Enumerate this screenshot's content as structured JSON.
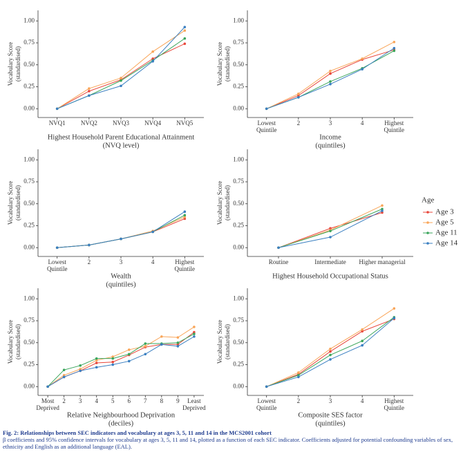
{
  "chart_data": [
    {
      "type": "line",
      "x_label": [
        "Highest Household Parent Educational Attainment",
        "(NVQ level)"
      ],
      "y_label": [
        "Vocabulary Score",
        "(standardised)"
      ],
      "categories": [
        [
          "NVQ1"
        ],
        [
          "NVQ2"
        ],
        [
          "NVQ3"
        ],
        [
          "NVQ4"
        ],
        [
          "NVQ5"
        ]
      ],
      "series": [
        {
          "name": "Age 3",
          "color": "#e8463a",
          "values": [
            0,
            0.2,
            0.33,
            0.57,
            0.74
          ]
        },
        {
          "name": "Age 5",
          "color": "#f9a65a",
          "values": [
            0,
            0.23,
            0.35,
            0.65,
            0.89
          ]
        },
        {
          "name": "Age 11",
          "color": "#3aa55b",
          "values": [
            0,
            0.15,
            0.32,
            0.55,
            0.8
          ]
        },
        {
          "name": "Age 14",
          "color": "#3a7fc1",
          "values": [
            0,
            0.15,
            0.26,
            0.54,
            0.93
          ]
        }
      ],
      "ylim": [
        -0.1,
        1.12
      ],
      "yticks": [
        {
          "value": 0,
          "label": "0.00"
        },
        {
          "value": 0.25,
          "label": "0.25"
        },
        {
          "value": 0.5,
          "label": "0.50"
        },
        {
          "value": 0.75,
          "label": "0.75"
        },
        {
          "value": 1,
          "label": "1.00"
        }
      ]
    },
    {
      "type": "line",
      "x_label": [
        "Income",
        "(quintiles)"
      ],
      "y_label": [
        "Vocabulary Score",
        "(standardised)"
      ],
      "categories": [
        [
          "Lowest",
          "Quintile"
        ],
        [
          "2"
        ],
        [
          "3"
        ],
        [
          "4"
        ],
        [
          "Highest",
          "Quintile"
        ]
      ],
      "series": [
        {
          "name": "Age 3",
          "color": "#e8463a",
          "values": [
            0,
            0.15,
            0.4,
            0.56,
            0.67
          ]
        },
        {
          "name": "Age 5",
          "color": "#f9a65a",
          "values": [
            0,
            0.17,
            0.43,
            0.57,
            0.76
          ]
        },
        {
          "name": "Age 11",
          "color": "#3aa55b",
          "values": [
            0,
            0.13,
            0.31,
            0.46,
            0.66
          ]
        },
        {
          "name": "Age 14",
          "color": "#3a7fc1",
          "values": [
            0,
            0.13,
            0.28,
            0.45,
            0.69
          ]
        }
      ],
      "ylim": [
        -0.1,
        1.12
      ],
      "yticks": [
        {
          "value": 0,
          "label": "0.00"
        },
        {
          "value": 0.25,
          "label": "0.25"
        },
        {
          "value": 0.5,
          "label": "0.50"
        },
        {
          "value": 0.75,
          "label": "0.75"
        },
        {
          "value": 1,
          "label": "1.00"
        }
      ]
    },
    {
      "type": "line",
      "x_label": [
        "Wealth",
        "(quintiles)"
      ],
      "y_label": [
        "Vocabulary Score",
        "(standardised)"
      ],
      "categories": [
        [
          "Lowest",
          "Quintile"
        ],
        [
          "2"
        ],
        [
          "3"
        ],
        [
          "4"
        ],
        [
          "Highest",
          "Quintile"
        ]
      ],
      "series": [
        {
          "name": "Age 3",
          "color": "#e8463a",
          "values": [
            0,
            0.03,
            0.1,
            0.18,
            0.33
          ]
        },
        {
          "name": "Age 5",
          "color": "#f9a65a",
          "values": [
            0,
            0.03,
            0.1,
            0.19,
            0.35
          ]
        },
        {
          "name": "Age 11",
          "color": "#3aa55b",
          "values": [
            0,
            0.03,
            0.1,
            0.18,
            0.37
          ]
        },
        {
          "name": "Age 14",
          "color": "#3a7fc1",
          "values": [
            0,
            0.03,
            0.1,
            0.18,
            0.41
          ]
        }
      ],
      "ylim": [
        -0.1,
        1.12
      ],
      "yticks": [
        {
          "value": 0,
          "label": "0.00"
        },
        {
          "value": 0.25,
          "label": "0.25"
        },
        {
          "value": 0.5,
          "label": "0.50"
        },
        {
          "value": 0.75,
          "label": "0.75"
        },
        {
          "value": 1,
          "label": "1.00"
        }
      ]
    },
    {
      "type": "line",
      "x_label": [
        "Highest Household Occupational Status"
      ],
      "y_label": [
        "Vocabulary Score",
        "(standardised)"
      ],
      "categories": [
        [
          "Routine"
        ],
        [
          "Intermediate"
        ],
        [
          "Higher managerial"
        ]
      ],
      "series": [
        {
          "name": "Age 3",
          "color": "#e8463a",
          "values": [
            0,
            0.22,
            0.4
          ]
        },
        {
          "name": "Age 5",
          "color": "#f9a65a",
          "values": [
            0,
            0.2,
            0.48
          ]
        },
        {
          "name": "Age 11",
          "color": "#3aa55b",
          "values": [
            0,
            0.19,
            0.44
          ]
        },
        {
          "name": "Age 14",
          "color": "#3a7fc1",
          "values": [
            0,
            0.12,
            0.42
          ]
        }
      ],
      "ylim": [
        -0.1,
        1.12
      ],
      "yticks": [
        {
          "value": 0,
          "label": "0.00"
        },
        {
          "value": 0.25,
          "label": "0.25"
        },
        {
          "value": 0.5,
          "label": "0.50"
        },
        {
          "value": 0.75,
          "label": "0.75"
        },
        {
          "value": 1,
          "label": "1.00"
        }
      ]
    },
    {
      "type": "line",
      "x_label": [
        "Relative Neighbourhood Deprivation",
        "(deciles)"
      ],
      "y_label": [
        "Vocabulary Score",
        "(standardised)"
      ],
      "categories": [
        [
          "Most",
          "Deprived"
        ],
        [
          "2"
        ],
        [
          "3"
        ],
        [
          "4"
        ],
        [
          "5"
        ],
        [
          "6"
        ],
        [
          "7"
        ],
        [
          "8"
        ],
        [
          "9"
        ],
        [
          "Least",
          "Deprived"
        ]
      ],
      "series": [
        {
          "name": "Age 3",
          "color": "#e8463a",
          "values": [
            0,
            0.11,
            0.18,
            0.27,
            0.28,
            0.36,
            0.45,
            0.48,
            0.48,
            0.62
          ]
        },
        {
          "name": "Age 5",
          "color": "#f9a65a",
          "values": [
            0,
            0.13,
            0.2,
            0.3,
            0.34,
            0.42,
            0.46,
            0.57,
            0.56,
            0.68
          ]
        },
        {
          "name": "Age 11",
          "color": "#3aa55b",
          "values": [
            0,
            0.19,
            0.24,
            0.32,
            0.32,
            0.37,
            0.49,
            0.49,
            0.5,
            0.6
          ]
        },
        {
          "name": "Age 14",
          "color": "#3a7fc1",
          "values": [
            0,
            0.11,
            0.18,
            0.22,
            0.25,
            0.29,
            0.37,
            0.48,
            0.46,
            0.57
          ]
        }
      ],
      "ylim": [
        -0.1,
        1.12
      ],
      "yticks": [
        {
          "value": 0,
          "label": "0.00"
        },
        {
          "value": 0.25,
          "label": "0.25"
        },
        {
          "value": 0.5,
          "label": "0.50"
        },
        {
          "value": 0.75,
          "label": "0.75"
        },
        {
          "value": 1,
          "label": "1.00"
        }
      ]
    },
    {
      "type": "line",
      "x_label": [
        "Composite SES factor",
        "(quintiles)"
      ],
      "y_label": [
        "Vocabulary Score",
        "(standardised)"
      ],
      "categories": [
        [
          "Lowest",
          "Quintile"
        ],
        [
          "2"
        ],
        [
          "3"
        ],
        [
          "4"
        ],
        [
          "Highest",
          "Quintile"
        ]
      ],
      "series": [
        {
          "name": "Age 3",
          "color": "#e8463a",
          "values": [
            0,
            0.14,
            0.4,
            0.63,
            0.77
          ]
        },
        {
          "name": "Age 5",
          "color": "#f9a65a",
          "values": [
            0,
            0.16,
            0.43,
            0.65,
            0.89
          ]
        },
        {
          "name": "Age 11",
          "color": "#3aa55b",
          "values": [
            0,
            0.13,
            0.36,
            0.52,
            0.79
          ]
        },
        {
          "name": "Age 14",
          "color": "#3a7fc1",
          "values": [
            0,
            0.11,
            0.31,
            0.47,
            0.78
          ]
        }
      ],
      "ylim": [
        -0.1,
        1.12
      ],
      "yticks": [
        {
          "value": 0,
          "label": "0.00"
        },
        {
          "value": 0.25,
          "label": "0.25"
        },
        {
          "value": 0.5,
          "label": "0.50"
        },
        {
          "value": 0.75,
          "label": "0.75"
        },
        {
          "value": 1,
          "label": "1.00"
        }
      ]
    }
  ],
  "legend_title": "Age",
  "caption": {
    "title": "Fig. 2: Relationships between SEC indicators and vocabulary at ages 3, 5, 11 and 14 in the MCS2001 cohort",
    "text": "β coefficients and 95% confidence intervals for vocabulary at ages 3, 5, 11 and 14, plotted as a function of each SEC indicator. Coefficients adjusted for potential confounding variables of sex, ethnicity and English as an additional language (EAL)."
  }
}
